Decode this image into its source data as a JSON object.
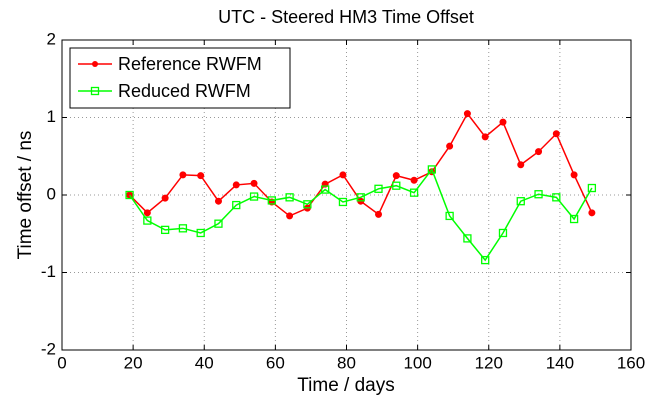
{
  "chart_data": {
    "type": "line",
    "title": "UTC - Steered HM3  Time Offset",
    "x_label": "Time / days",
    "y_label": "Time offset / ns",
    "x": [
      19,
      24,
      29,
      34,
      39,
      44,
      49,
      54,
      59,
      64,
      69,
      74,
      79,
      84,
      89,
      94,
      99,
      104,
      109,
      114,
      119,
      124,
      129,
      134,
      139,
      144,
      149
    ],
    "series": [
      {
        "name": "Reference RWFM",
        "color": "#ff0000",
        "marker": "circle",
        "values": [
          0,
          -0.23,
          -0.04,
          0.26,
          0.25,
          -0.08,
          0.13,
          0.15,
          -0.09,
          -0.27,
          -0.17,
          0.14,
          0.26,
          -0.08,
          -0.25,
          0.25,
          0.19,
          0.3,
          0.63,
          1.05,
          0.75,
          0.94,
          0.39,
          0.56,
          0.79,
          0.26,
          -0.23
        ]
      },
      {
        "name": "Reduced RWFM",
        "color": "#00ff00",
        "marker": "square",
        "values": [
          0,
          -0.33,
          -0.45,
          -0.43,
          -0.49,
          -0.37,
          -0.13,
          -0.02,
          -0.07,
          -0.03,
          -0.12,
          0.07,
          -0.09,
          -0.03,
          0.08,
          0.12,
          0.03,
          0.33,
          -0.27,
          -0.56,
          -0.84,
          -0.49,
          -0.08,
          0.01,
          -0.03,
          -0.31,
          0.09
        ]
      }
    ],
    "xlim": [
      0,
      160
    ],
    "xticks": [
      0,
      20,
      40,
      60,
      80,
      100,
      120,
      140,
      160
    ],
    "ylim": [
      -2,
      2
    ],
    "yticks": [
      -2,
      -1,
      0,
      1,
      2
    ],
    "grid": true,
    "legend": "upper-left"
  }
}
